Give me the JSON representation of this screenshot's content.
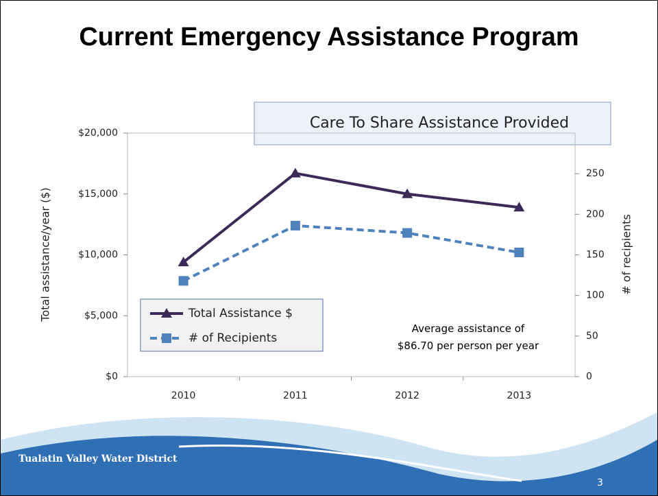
{
  "page_title": "Current Emergency Assistance Program",
  "footer": {
    "organization": "Tualatin Valley Water District",
    "page_number": "3"
  },
  "chart_data": {
    "type": "line",
    "title": "Care To Share Assistance Provided",
    "y_label": "Total assistance/year ($)",
    "y2_label": "# of recipients",
    "categories": [
      "2010",
      "2011",
      "2012",
      "2013"
    ],
    "series": [
      {
        "name": "Total Assistance $",
        "color": "#3b2a58",
        "marker": "triangle",
        "line_style": "solid",
        "values": [
          9400,
          16700,
          15000,
          13900
        ]
      },
      {
        "name": "# of Recipients",
        "color": "#4f81bd",
        "marker": "square",
        "line_style": "dashed",
        "axis": "y2",
        "values": [
          118,
          186,
          177,
          153
        ]
      }
    ],
    "ylim": [
      0,
      20000
    ],
    "yticks": [
      {
        "value": 0,
        "label": "$0"
      },
      {
        "value": 5000,
        "label": "$5,000"
      },
      {
        "value": 10000,
        "label": "$10,000"
      },
      {
        "value": 15000,
        "label": "$15,000"
      },
      {
        "value": 20000,
        "label": "$20,000"
      }
    ],
    "y2lim": [
      0,
      300
    ],
    "y2ticks": [
      0,
      50,
      100,
      150,
      200,
      250
    ],
    "annotation": "Average assistance of $86.70 per person per year",
    "legend": "lower-left"
  }
}
